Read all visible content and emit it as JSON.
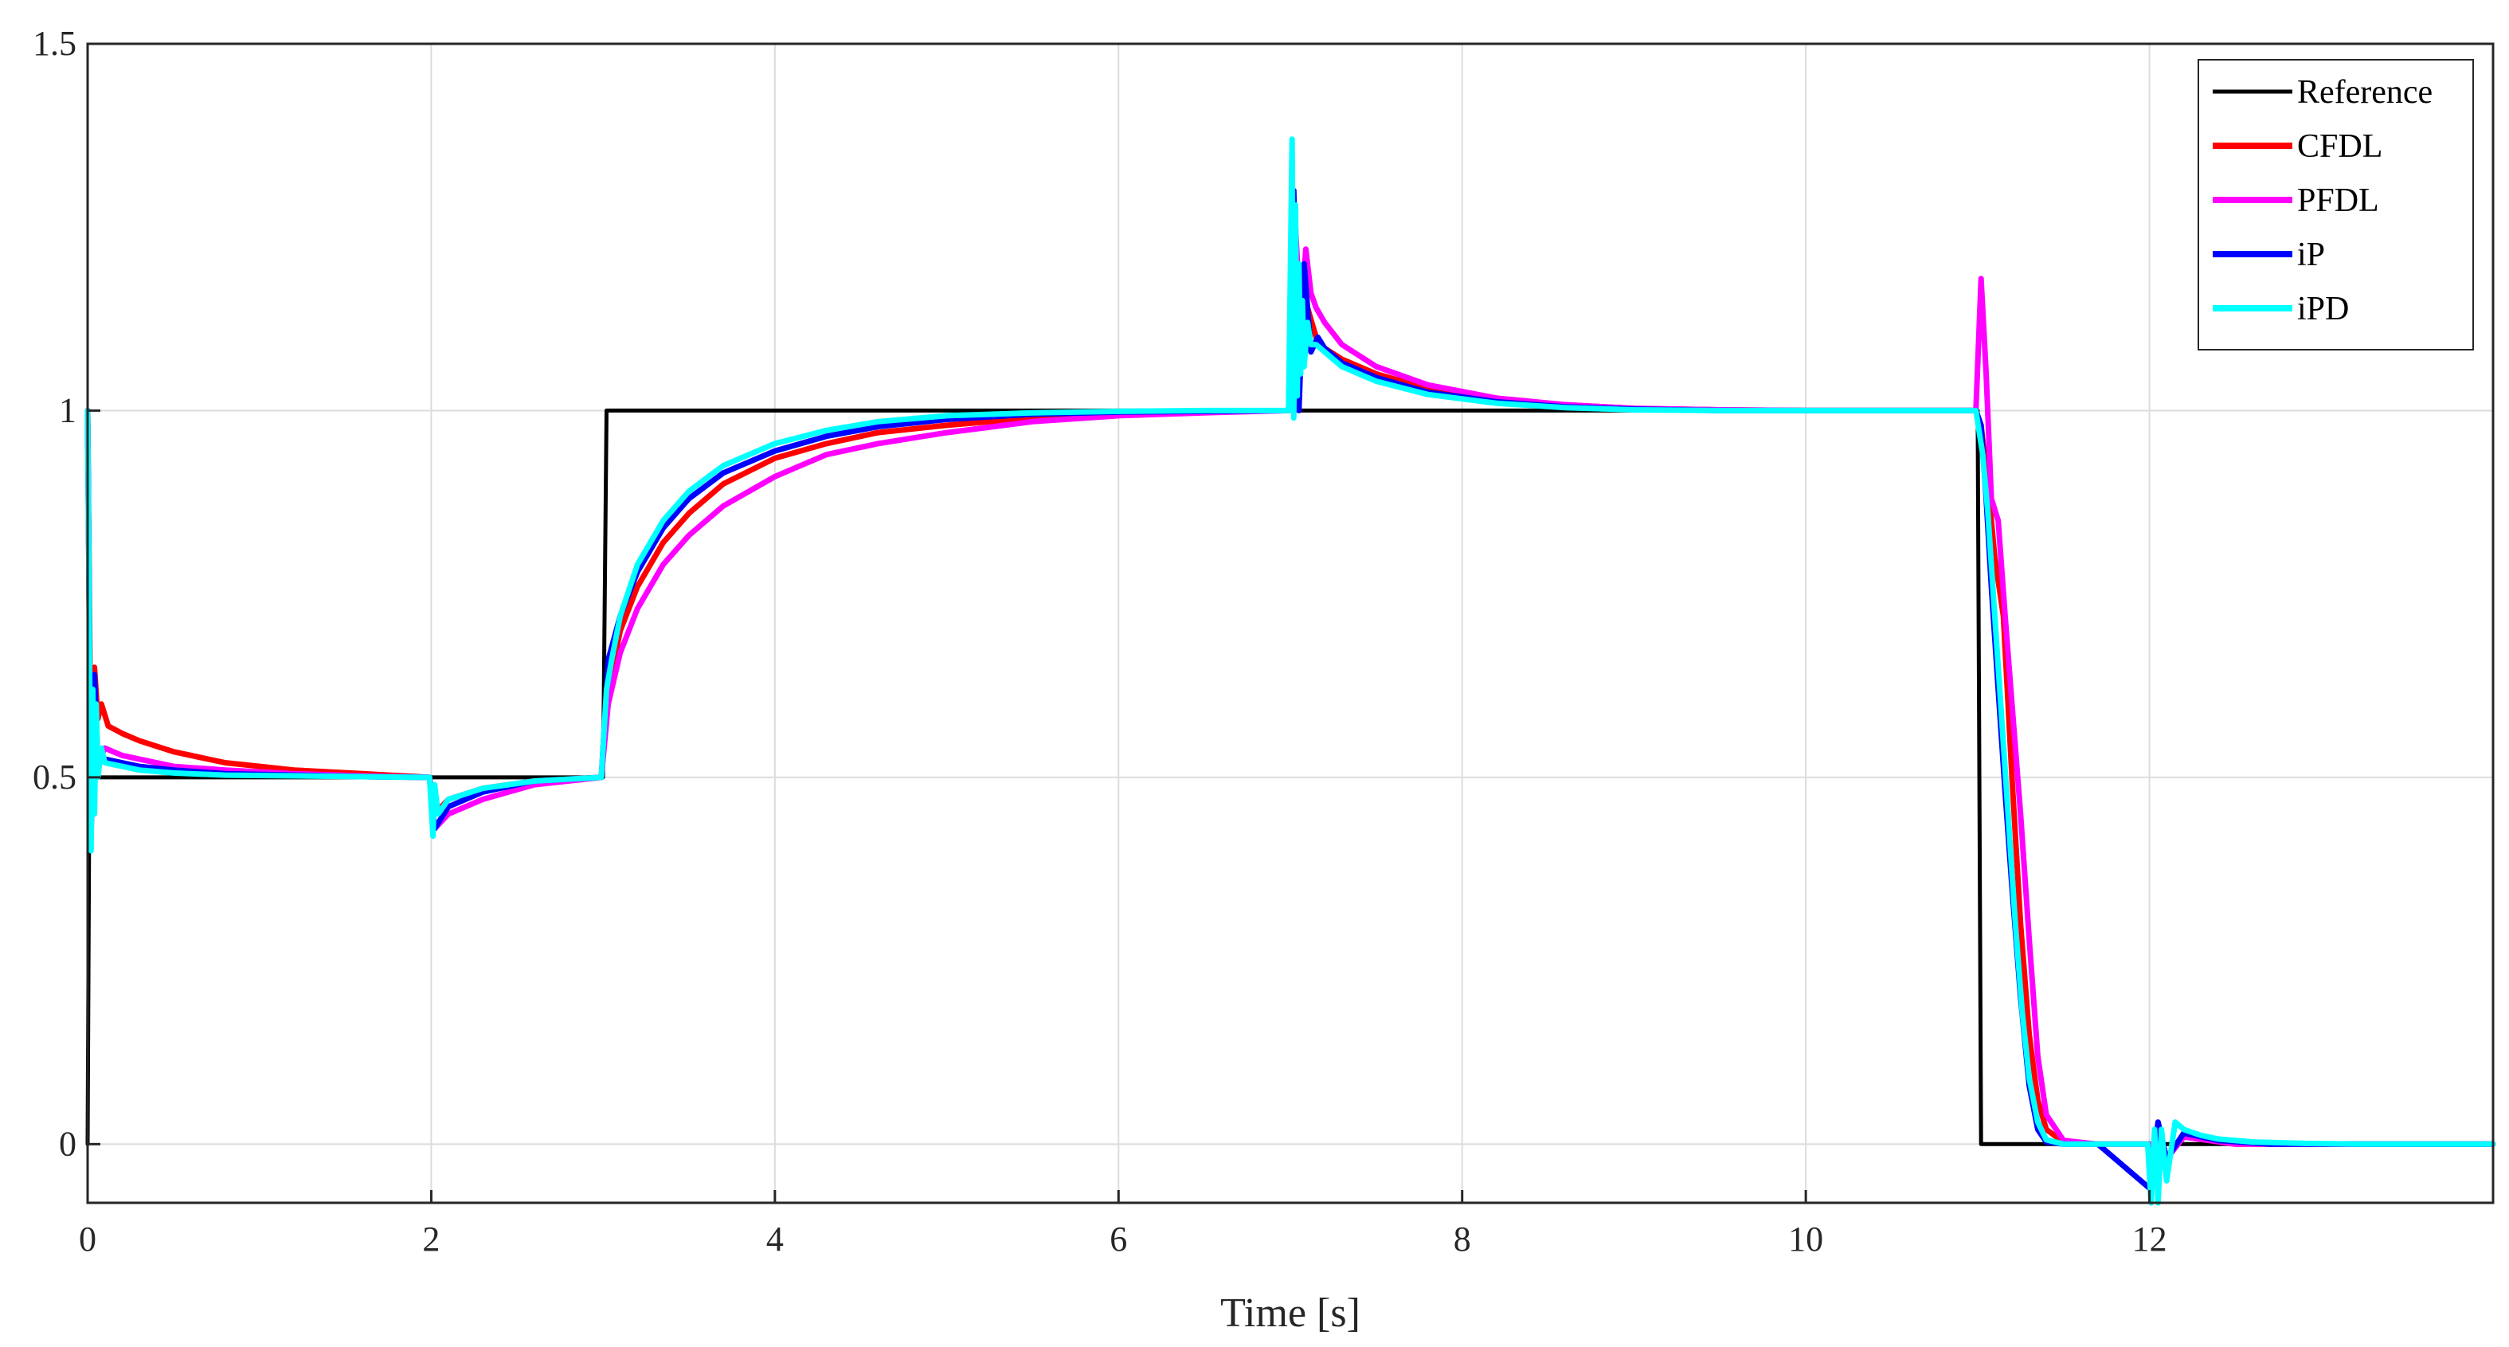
{
  "chart_data": {
    "type": "line",
    "title": "",
    "xlabel": "Time [s]",
    "ylabel": "",
    "xlim": [
      0,
      14
    ],
    "ylim": [
      -0.08,
      1.5
    ],
    "grid": true,
    "legend_position": "top-right",
    "x_ticks": [
      0,
      2,
      4,
      6,
      8,
      10,
      12
    ],
    "x_tick_labels": [
      "0",
      "2",
      "4",
      "6",
      "8",
      "10",
      "12"
    ],
    "y_ticks": [
      0,
      0.5,
      1,
      1.5
    ],
    "y_tick_labels": [
      "0",
      "0.5",
      "1",
      "1.5"
    ],
    "series": [
      {
        "name": "Reference",
        "color": "#000000",
        "x": [
          0,
          0.01,
          0.02,
          1.98,
          2.0,
          2.98,
          3.0,
          3.02,
          10.98,
          11.0,
          11.02,
          14
        ],
        "y": [
          0,
          0.5,
          0.5,
          0.5,
          0.5,
          0.5,
          0.5,
          1,
          1,
          1,
          0,
          0
        ]
      },
      {
        "name": "CFDL",
        "color": "#ff0000",
        "x": [
          0,
          0.02,
          0.04,
          0.06,
          0.08,
          0.12,
          0.2,
          0.3,
          0.5,
          0.8,
          1.2,
          1.6,
          1.99,
          2.02,
          2.1,
          2.3,
          2.6,
          2.99,
          3.03,
          3.1,
          3.2,
          3.35,
          3.5,
          3.7,
          4.0,
          4.3,
          4.6,
          5.0,
          5.5,
          6.0,
          6.5,
          6.99,
          7.03,
          7.06,
          7.1,
          7.15,
          7.2,
          7.3,
          7.5,
          7.8,
          8.2,
          8.6,
          9.0,
          9.5,
          10.0,
          10.5,
          10.99,
          11.02,
          11.06,
          11.1,
          11.15,
          11.2,
          11.25,
          11.3,
          11.35,
          11.4,
          11.5,
          11.7,
          12.0,
          12.1,
          12.2,
          12.5,
          13.0,
          14.0
        ],
        "y": [
          1.0,
          0.5,
          0.65,
          0.58,
          0.6,
          0.57,
          0.56,
          0.55,
          0.535,
          0.52,
          0.51,
          0.505,
          0.5,
          0.45,
          0.47,
          0.485,
          0.495,
          0.5,
          0.62,
          0.7,
          0.76,
          0.82,
          0.86,
          0.9,
          0.935,
          0.955,
          0.97,
          0.98,
          0.99,
          0.995,
          0.998,
          1.0,
          1.2,
          1.06,
          1.14,
          1.1,
          1.085,
          1.07,
          1.05,
          1.03,
          1.015,
          1.008,
          1.003,
          1.001,
          1.0,
          1.0,
          1.0,
          0.98,
          0.9,
          0.8,
          0.72,
          0.5,
          0.3,
          0.15,
          0.06,
          0.02,
          0.003,
          0.0,
          0.0,
          -0.02,
          0.01,
          0.0,
          0.0,
          0.0
        ]
      },
      {
        "name": "PFDL",
        "color": "#ff00ff",
        "x": [
          0,
          0.02,
          0.04,
          0.06,
          0.1,
          0.2,
          0.3,
          0.5,
          0.8,
          1.2,
          1.6,
          1.99,
          2.02,
          2.1,
          2.3,
          2.6,
          2.99,
          3.03,
          3.1,
          3.2,
          3.35,
          3.5,
          3.7,
          4.0,
          4.3,
          4.6,
          5.0,
          5.5,
          6.0,
          6.5,
          6.99,
          7.03,
          7.06,
          7.09,
          7.12,
          7.15,
          7.2,
          7.3,
          7.5,
          7.8,
          8.2,
          8.6,
          9.0,
          9.5,
          10.0,
          10.5,
          10.99,
          11.02,
          11.05,
          11.08,
          11.12,
          11.16,
          11.2,
          11.25,
          11.3,
          11.35,
          11.4,
          11.5,
          11.7,
          12.0,
          12.1,
          12.2,
          12.5,
          13.0,
          14.0
        ],
        "y": [
          1.0,
          0.43,
          0.6,
          0.52,
          0.54,
          0.53,
          0.525,
          0.515,
          0.51,
          0.505,
          0.502,
          0.5,
          0.43,
          0.45,
          0.47,
          0.49,
          0.5,
          0.6,
          0.67,
          0.73,
          0.79,
          0.83,
          0.87,
          0.91,
          0.94,
          0.955,
          0.97,
          0.985,
          0.993,
          0.997,
          1.0,
          1.25,
          1.12,
          1.22,
          1.16,
          1.14,
          1.12,
          1.09,
          1.06,
          1.035,
          1.017,
          1.008,
          1.003,
          1.001,
          1.0,
          1.0,
          1.0,
          1.18,
          1.05,
          0.88,
          0.85,
          0.72,
          0.6,
          0.45,
          0.28,
          0.12,
          0.04,
          0.005,
          0.0,
          0.0,
          -0.02,
          0.01,
          0.0,
          0.0,
          0.0
        ]
      },
      {
        "name": "iP",
        "color": "#0000ff",
        "x": [
          0,
          0.02,
          0.04,
          0.06,
          0.1,
          0.2,
          0.3,
          0.5,
          0.8,
          1.2,
          1.6,
          1.99,
          2.02,
          2.1,
          2.3,
          2.6,
          2.99,
          3.03,
          3.1,
          3.2,
          3.35,
          3.5,
          3.7,
          4.0,
          4.3,
          4.6,
          5.0,
          5.5,
          6.0,
          6.5,
          6.99,
          7.02,
          7.05,
          7.08,
          7.12,
          7.16,
          7.2,
          7.3,
          7.5,
          7.8,
          8.2,
          8.6,
          9.0,
          9.5,
          10.0,
          10.5,
          10.99,
          11.02,
          11.05,
          11.08,
          11.12,
          11.16,
          11.2,
          11.25,
          11.3,
          11.35,
          11.4,
          11.5,
          11.7,
          12.0,
          12.05,
          12.1,
          12.2,
          12.4,
          12.7,
          13.0,
          14.0
        ],
        "y": [
          1.0,
          0.42,
          0.64,
          0.52,
          0.525,
          0.52,
          0.515,
          0.51,
          0.505,
          0.503,
          0.501,
          0.5,
          0.43,
          0.46,
          0.48,
          0.495,
          0.5,
          0.66,
          0.72,
          0.78,
          0.84,
          0.88,
          0.915,
          0.945,
          0.965,
          0.978,
          0.988,
          0.995,
          0.998,
          0.999,
          1.0,
          1.3,
          1.0,
          1.2,
          1.08,
          1.1,
          1.085,
          1.065,
          1.045,
          1.025,
          1.012,
          1.005,
          1.002,
          1.0,
          1.0,
          1.0,
          1.0,
          0.98,
          0.88,
          0.76,
          0.62,
          0.48,
          0.35,
          0.2,
          0.08,
          0.02,
          0.003,
          0.0,
          0.0,
          -0.06,
          0.03,
          -0.02,
          0.015,
          0.005,
          0.0,
          0.0,
          0.0
        ]
      },
      {
        "name": "iPD",
        "color": "#00ffff",
        "x": [
          0,
          0.02,
          0.03,
          0.04,
          0.05,
          0.06,
          0.08,
          0.1,
          0.2,
          0.3,
          0.5,
          0.8,
          1.2,
          1.6,
          1.99,
          2.01,
          2.02,
          2.04,
          2.1,
          2.3,
          2.6,
          2.99,
          3.02,
          3.05,
          3.1,
          3.2,
          3.35,
          3.5,
          3.7,
          4.0,
          4.3,
          4.6,
          5.0,
          5.5,
          6.0,
          6.5,
          6.99,
          7.01,
          7.02,
          7.03,
          7.04,
          7.05,
          7.06,
          7.07,
          7.08,
          7.1,
          7.12,
          7.15,
          7.2,
          7.3,
          7.5,
          7.8,
          8.2,
          8.6,
          9.0,
          9.5,
          10.0,
          10.5,
          10.99,
          11.01,
          11.03,
          11.06,
          11.1,
          11.14,
          11.18,
          11.22,
          11.26,
          11.3,
          11.35,
          11.4,
          11.5,
          11.7,
          11.99,
          12.01,
          12.03,
          12.05,
          12.07,
          12.1,
          12.15,
          12.2,
          12.3,
          12.4,
          12.6,
          12.9,
          13.2,
          14.0
        ],
        "y": [
          1.0,
          0.4,
          0.62,
          0.45,
          0.6,
          0.5,
          0.54,
          0.52,
          0.515,
          0.51,
          0.506,
          0.503,
          0.502,
          0.501,
          0.5,
          0.42,
          0.49,
          0.45,
          0.47,
          0.485,
          0.495,
          0.5,
          0.62,
          0.66,
          0.72,
          0.79,
          0.85,
          0.89,
          0.925,
          0.955,
          0.973,
          0.985,
          0.993,
          0.997,
          0.999,
          1.0,
          1.0,
          1.37,
          0.99,
          1.28,
          1.02,
          1.2,
          1.05,
          1.15,
          1.06,
          1.12,
          1.09,
          1.09,
          1.08,
          1.06,
          1.04,
          1.022,
          1.01,
          1.004,
          1.001,
          1.0,
          1.0,
          1.0,
          1.0,
          0.97,
          0.94,
          0.86,
          0.72,
          0.58,
          0.44,
          0.3,
          0.18,
          0.09,
          0.03,
          0.006,
          0.0,
          0.0,
          0.0,
          -0.08,
          0.02,
          -0.08,
          0.02,
          -0.05,
          0.03,
          0.02,
          0.012,
          0.007,
          0.003,
          0.001,
          0.0,
          0.0
        ]
      }
    ]
  }
}
